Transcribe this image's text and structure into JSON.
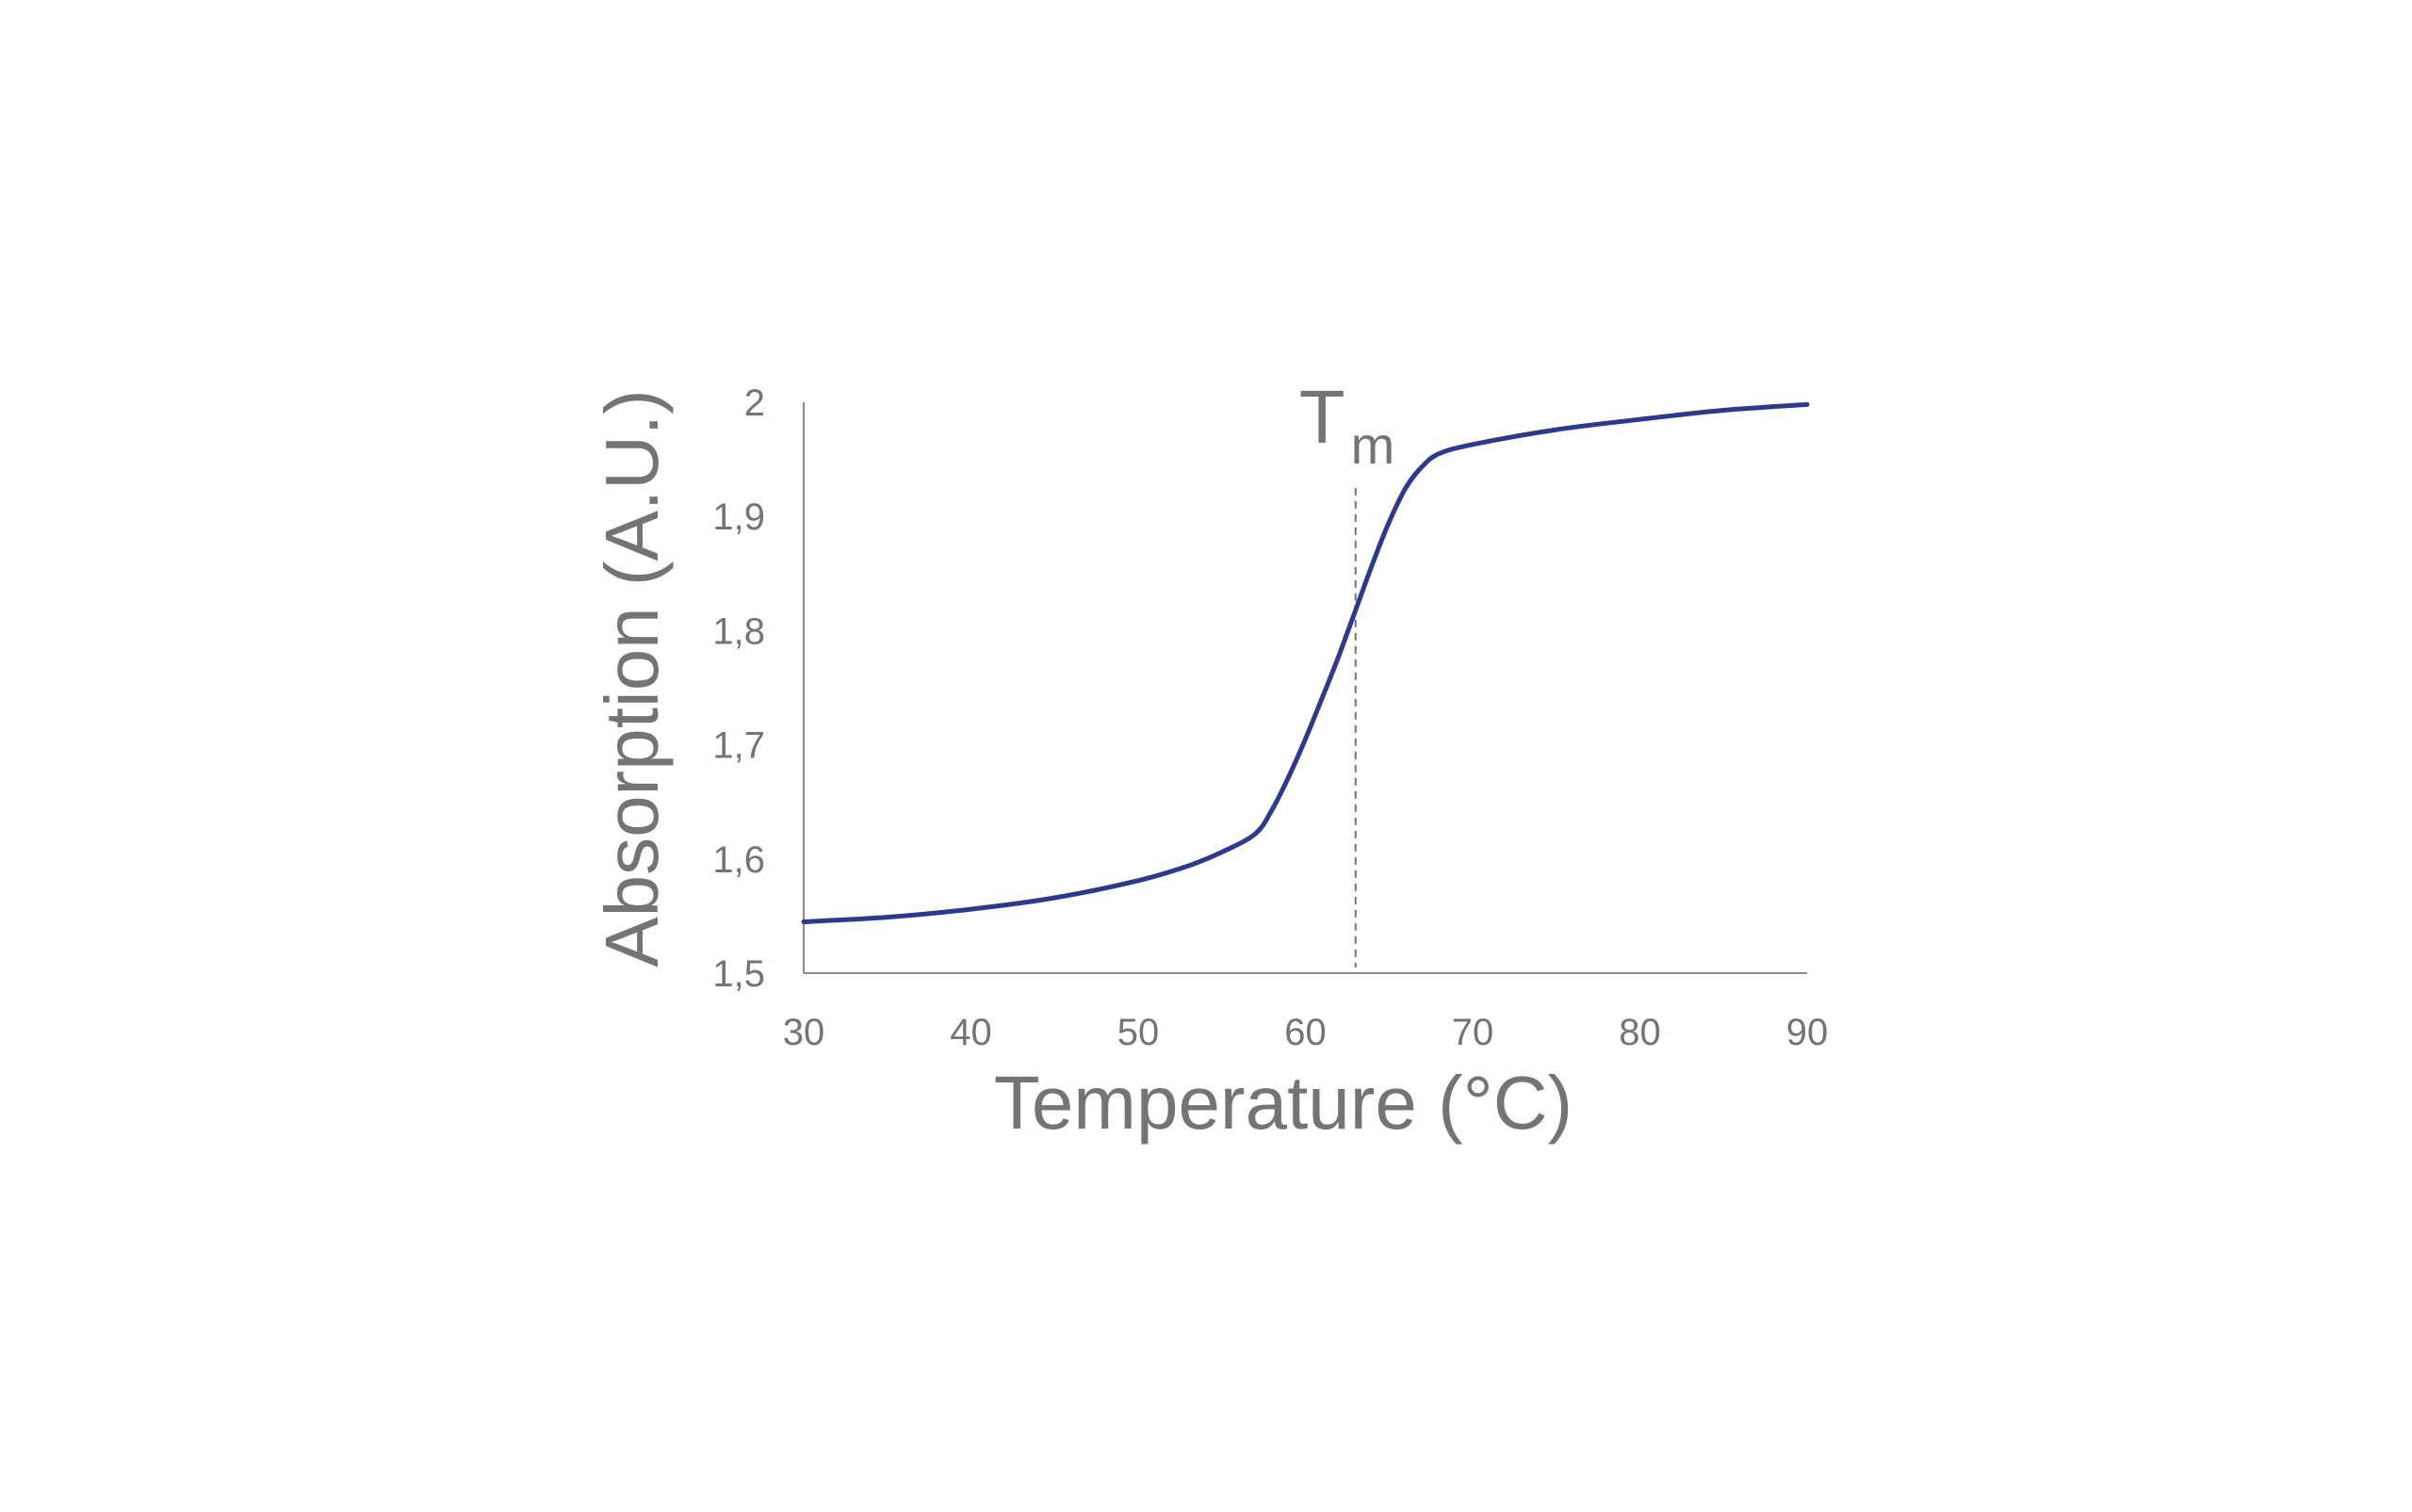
{
  "chart_data": {
    "type": "line",
    "title": "",
    "xlabel": "Temperature (°C)",
    "ylabel": "Absorption (A.U.)",
    "xlim": [
      30,
      90
    ],
    "ylim": [
      1.5,
      2.0
    ],
    "x_ticks": [
      30,
      40,
      50,
      60,
      70,
      80,
      90
    ],
    "x_tick_labels": [
      "30",
      "40",
      "50",
      "60",
      "70",
      "80",
      "90"
    ],
    "y_ticks": [
      1.5,
      1.6,
      1.7,
      1.8,
      1.9,
      2.0
    ],
    "y_tick_labels": [
      "1,5",
      "1,6",
      "1,7",
      "1,8",
      "1,9",
      "2"
    ],
    "grid": false,
    "legend": "none",
    "series": [
      {
        "color": "#2b3990",
        "x": [
          30,
          35,
          40,
          45,
          50,
          53,
          55,
          57,
          58,
          59,
          60,
          61,
          62,
          63,
          64,
          65,
          66,
          67,
          68,
          70,
          75,
          80,
          85,
          90
        ],
        "y": [
          1.545,
          1.549,
          1.556,
          1.566,
          1.581,
          1.594,
          1.606,
          1.622,
          1.643,
          1.672,
          1.705,
          1.741,
          1.778,
          1.818,
          1.858,
          1.895,
          1.925,
          1.944,
          1.955,
          1.963,
          1.976,
          1.985,
          1.993,
          1.998
        ]
      }
    ],
    "annotations": [
      {
        "type": "vline",
        "x": 63,
        "y_from": 1.505,
        "y_to": 1.925,
        "style": "dashed",
        "color": "#747474",
        "label": "T",
        "label_sub": "m"
      }
    ]
  }
}
